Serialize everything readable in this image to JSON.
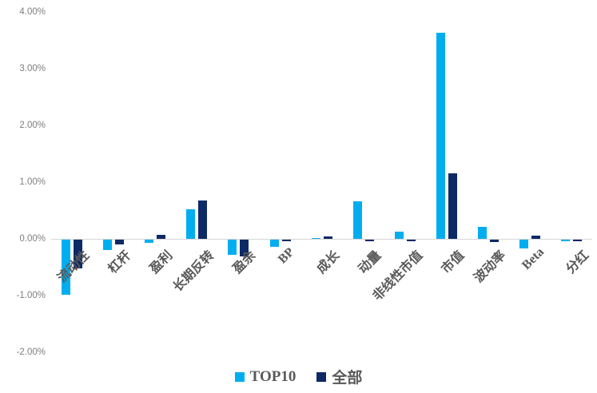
{
  "chart_data": {
    "type": "bar",
    "title": "",
    "xlabel": "",
    "ylabel": "",
    "categories": [
      "流动性",
      "杠杆",
      "盈利",
      "长期反转",
      "盈余",
      "BP",
      "成长",
      "动量",
      "非线性市值",
      "市值",
      "波动率",
      "Beta",
      "分红"
    ],
    "series": [
      {
        "name": "TOP10",
        "color": "#00AEEF",
        "values": [
          -0.97,
          -0.19,
          -0.05,
          0.52,
          -0.27,
          -0.12,
          0.01,
          0.66,
          0.13,
          3.63,
          0.21,
          -0.15,
          -0.03
        ]
      },
      {
        "name": "全部",
        "color": "#0D2A66",
        "values": [
          -0.5,
          -0.08,
          0.07,
          0.67,
          -0.3,
          -0.03,
          0.04,
          -0.03,
          -0.03,
          1.15,
          -0.04,
          0.05,
          -0.03
        ]
      }
    ],
    "values_unit": "percent",
    "y_axis": {
      "min": -2,
      "max": 4,
      "step": 1,
      "tick_labels": [
        "4.00%",
        "3.00%",
        "2.00%",
        "1.00%",
        "0.00%",
        "-1.00%",
        "-2.00%"
      ]
    },
    "grid": false,
    "legend_position": "bottom"
  },
  "legend": {
    "top10_label": "TOP10",
    "all_label": "全部"
  },
  "colors": {
    "top10": "#00AEEF",
    "all": "#0D2A66",
    "axis_line": "#D6D6D6",
    "tick_text": "#7F7F7F",
    "category_text": "#595959",
    "background": "#FFFFFF"
  }
}
